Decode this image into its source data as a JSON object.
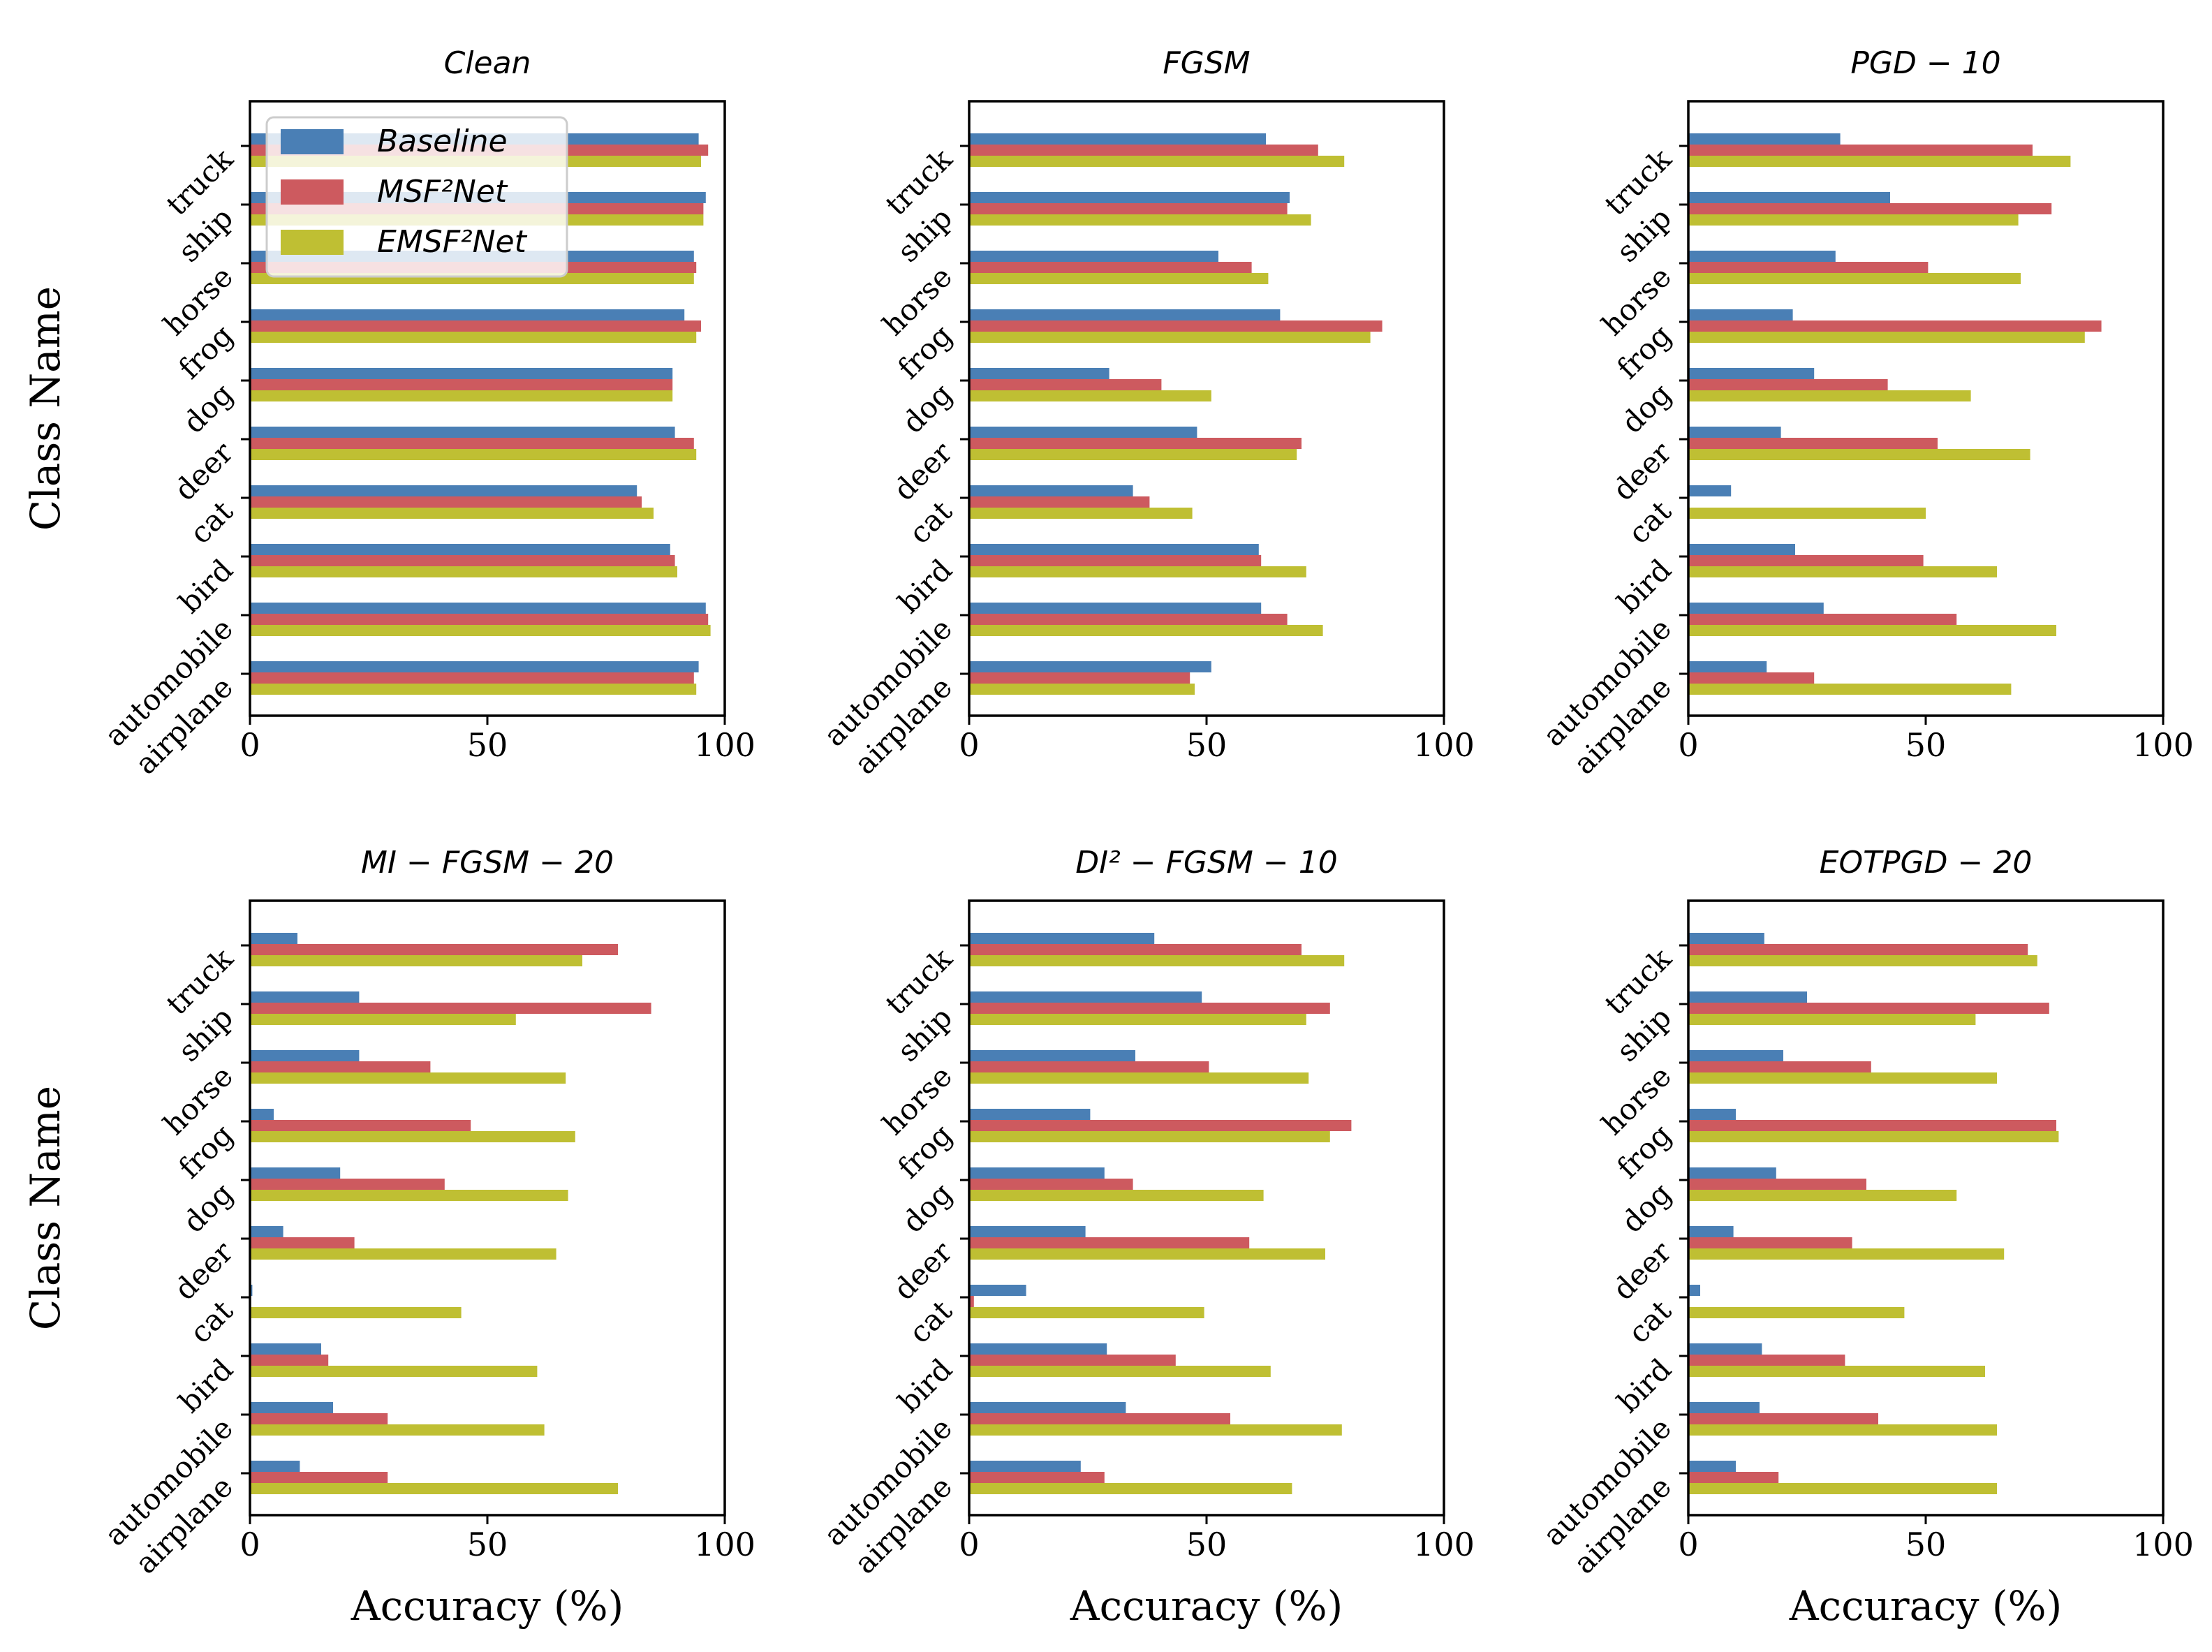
{
  "colors": {
    "Baseline": "#4a7fb5",
    "MSF2Net": "#cd5a5f",
    "EMSF2Net": "#bfbf33"
  },
  "ylabel": "Class Name",
  "xlabel": "Accuracy (%)",
  "legend": [
    {
      "key": "Baseline",
      "label": "Baseline"
    },
    {
      "key": "MSF2Net",
      "label": "MSF²Net"
    },
    {
      "key": "EMSF2Net",
      "label": "EMSF²Net"
    }
  ],
  "chart_data": [
    {
      "type": "bar",
      "orientation": "horizontal",
      "title": "Clean",
      "xlim": [
        0,
        100
      ],
      "xticks": [
        0,
        50,
        100
      ],
      "categories": [
        "airplane",
        "automobile",
        "bird",
        "cat",
        "deer",
        "dog",
        "frog",
        "horse",
        "ship",
        "truck"
      ],
      "series": [
        {
          "name": "Baseline",
          "values": [
            94.5,
            96,
            88.5,
            81.5,
            89.5,
            89,
            91.5,
            93.5,
            96,
            94.5
          ]
        },
        {
          "name": "MSF2Net",
          "values": [
            93.5,
            96.5,
            89.5,
            82.5,
            93.5,
            89,
            95,
            94,
            95.5,
            96.5
          ]
        },
        {
          "name": "EMSF2Net",
          "values": [
            94,
            97,
            90,
            85,
            94,
            89,
            94,
            93.5,
            95.5,
            95
          ]
        }
      ]
    },
    {
      "type": "bar",
      "orientation": "horizontal",
      "title": "FGSM",
      "xlim": [
        0,
        100
      ],
      "xticks": [
        0,
        50,
        100
      ],
      "categories": [
        "airplane",
        "automobile",
        "bird",
        "cat",
        "deer",
        "dog",
        "frog",
        "horse",
        "ship",
        "truck"
      ],
      "series": [
        {
          "name": "Baseline",
          "values": [
            51,
            61.5,
            61,
            34.5,
            48,
            29.5,
            65.5,
            52.5,
            67.5,
            62.5
          ]
        },
        {
          "name": "MSF2Net",
          "values": [
            46.5,
            67,
            61.5,
            38,
            70,
            40.5,
            87,
            59.5,
            67,
            73.5
          ]
        },
        {
          "name": "EMSF2Net",
          "values": [
            47.5,
            74.5,
            71,
            47,
            69,
            51,
            84.5,
            63,
            72,
            79
          ]
        }
      ]
    },
    {
      "type": "bar",
      "orientation": "horizontal",
      "title": "PGD − 10",
      "xlim": [
        0,
        100
      ],
      "xticks": [
        0,
        50,
        100
      ],
      "categories": [
        "airplane",
        "automobile",
        "bird",
        "cat",
        "deer",
        "dog",
        "frog",
        "horse",
        "ship",
        "truck"
      ],
      "series": [
        {
          "name": "Baseline",
          "values": [
            16.5,
            28.5,
            22.5,
            9,
            19.5,
            26.5,
            22,
            31,
            42.5,
            32
          ]
        },
        {
          "name": "MSF2Net",
          "values": [
            26.5,
            56.5,
            49.5,
            0,
            52.5,
            42,
            87,
            50.5,
            76.5,
            72.5
          ]
        },
        {
          "name": "EMSF2Net",
          "values": [
            68,
            77.5,
            65,
            50,
            72,
            59.5,
            83.5,
            70,
            69.5,
            80.5
          ]
        }
      ]
    },
    {
      "type": "bar",
      "orientation": "horizontal",
      "title": "MI − FGSM − 20",
      "xlim": [
        0,
        100
      ],
      "xticks": [
        0,
        50,
        100
      ],
      "categories": [
        "airplane",
        "automobile",
        "bird",
        "cat",
        "deer",
        "dog",
        "frog",
        "horse",
        "ship",
        "truck"
      ],
      "series": [
        {
          "name": "Baseline",
          "values": [
            10.5,
            17.5,
            15,
            0.5,
            7,
            19,
            5,
            23,
            23,
            10
          ]
        },
        {
          "name": "MSF2Net",
          "values": [
            29,
            29,
            16.5,
            0,
            22,
            41,
            46.5,
            38,
            84.5,
            77.5
          ]
        },
        {
          "name": "EMSF2Net",
          "values": [
            77.5,
            62,
            60.5,
            44.5,
            64.5,
            67,
            68.5,
            66.5,
            56,
            70
          ]
        }
      ]
    },
    {
      "type": "bar",
      "orientation": "horizontal",
      "title": "DI² − FGSM − 10",
      "xlim": [
        0,
        100
      ],
      "xticks": [
        0,
        50,
        100
      ],
      "categories": [
        "airplane",
        "automobile",
        "bird",
        "cat",
        "deer",
        "dog",
        "frog",
        "horse",
        "ship",
        "truck"
      ],
      "series": [
        {
          "name": "Baseline",
          "values": [
            23.5,
            33,
            29,
            12,
            24.5,
            28.5,
            25.5,
            35,
            49,
            39
          ]
        },
        {
          "name": "MSF2Net",
          "values": [
            28.5,
            55,
            43.5,
            1,
            59,
            34.5,
            80.5,
            50.5,
            76,
            70
          ]
        },
        {
          "name": "EMSF2Net",
          "values": [
            68,
            78.5,
            63.5,
            49.5,
            75,
            62,
            76,
            71.5,
            71,
            79
          ]
        }
      ]
    },
    {
      "type": "bar",
      "orientation": "horizontal",
      "title": "EOTPGD − 20",
      "xlim": [
        0,
        100
      ],
      "xticks": [
        0,
        50,
        100
      ],
      "categories": [
        "airplane",
        "automobile",
        "bird",
        "cat",
        "deer",
        "dog",
        "frog",
        "horse",
        "ship",
        "truck"
      ],
      "series": [
        {
          "name": "Baseline",
          "values": [
            10,
            15,
            15.5,
            2.5,
            9.5,
            18.5,
            10,
            20,
            25,
            16
          ]
        },
        {
          "name": "MSF2Net",
          "values": [
            19,
            40,
            33,
            0,
            34.5,
            37.5,
            77.5,
            38.5,
            76,
            71.5
          ]
        },
        {
          "name": "EMSF2Net",
          "values": [
            65,
            65,
            62.5,
            45.5,
            66.5,
            56.5,
            78,
            65,
            60.5,
            73.5
          ]
        }
      ]
    }
  ]
}
